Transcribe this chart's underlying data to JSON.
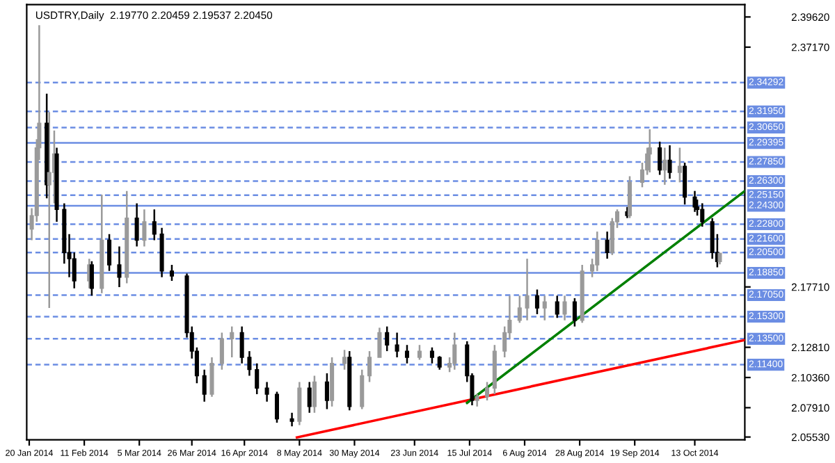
{
  "chart_data": {
    "type": "candlestick",
    "title": "USDTRY,Daily  2.19770 2.20459 2.19537 2.20450",
    "x": [
      "2014-01-21",
      "2014-01-23",
      "2014-01-24",
      "2014-01-27",
      "2014-01-28",
      "2014-01-30",
      "2014-01-31",
      "2014-02-03",
      "2014-02-05",
      "2014-02-07",
      "2014-02-13",
      "2014-02-14",
      "2014-02-18",
      "2014-02-21",
      "2014-02-25",
      "2014-02-28",
      "2014-03-04",
      "2014-03-07",
      "2014-03-11",
      "2014-03-14",
      "2014-03-18",
      "2014-03-24",
      "2014-03-26",
      "2014-03-28",
      "2014-03-31",
      "2014-04-03",
      "2014-04-07",
      "2014-04-11",
      "2014-04-15",
      "2014-04-18",
      "2014-04-21",
      "2014-04-25",
      "2014-04-29",
      "2014-05-05",
      "2014-05-08",
      "2014-05-12",
      "2014-05-14",
      "2014-05-19",
      "2014-05-21",
      "2014-05-26",
      "2014-05-28",
      "2014-06-02",
      "2014-06-05",
      "2014-06-09",
      "2014-06-12",
      "2014-06-16",
      "2014-06-20",
      "2014-06-25",
      "2014-06-30",
      "2014-07-03",
      "2014-07-07",
      "2014-07-09",
      "2014-07-14",
      "2014-07-16",
      "2014-07-18",
      "2014-07-22",
      "2014-07-25",
      "2014-07-29",
      "2014-07-31",
      "2014-08-04",
      "2014-08-07",
      "2014-08-11",
      "2014-08-14",
      "2014-08-19",
      "2014-08-22",
      "2014-08-26",
      "2014-08-29",
      "2014-09-02",
      "2014-09-04",
      "2014-09-08",
      "2014-09-10",
      "2014-09-12",
      "2014-09-16",
      "2014-09-17",
      "2014-09-22",
      "2014-09-24",
      "2014-09-25",
      "2014-09-29",
      "2014-10-01",
      "2014-10-03",
      "2014-10-07",
      "2014-10-09",
      "2014-10-13",
      "2014-10-14",
      "2014-10-16",
      "2014-10-20",
      "2014-10-22",
      "2014-10-23"
    ],
    "ohlc": [
      [
        2.224,
        2.241,
        2.215,
        2.235
      ],
      [
        2.235,
        2.297,
        2.23,
        2.29
      ],
      [
        2.29,
        2.3895,
        2.28,
        2.31
      ],
      [
        2.31,
        2.334,
        2.249,
        2.26
      ],
      [
        2.26,
        2.319,
        2.16,
        2.27
      ],
      [
        2.27,
        2.304,
        2.245,
        2.285
      ],
      [
        2.285,
        2.29,
        2.23,
        2.24
      ],
      [
        2.24,
        2.245,
        2.196,
        2.205
      ],
      [
        2.205,
        2.22,
        2.185,
        2.2
      ],
      [
        2.2,
        2.205,
        2.176,
        2.182
      ],
      [
        2.182,
        2.2,
        2.176,
        2.195
      ],
      [
        2.195,
        2.198,
        2.17,
        2.176
      ],
      [
        2.176,
        2.252,
        2.172,
        2.215
      ],
      [
        2.215,
        2.22,
        2.19,
        2.195
      ],
      [
        2.195,
        2.21,
        2.177,
        2.185
      ],
      [
        2.185,
        2.255,
        2.18,
        2.233
      ],
      [
        2.233,
        2.245,
        2.21,
        2.215
      ],
      [
        2.215,
        2.24,
        2.21,
        2.23
      ],
      [
        2.23,
        2.24,
        2.215,
        2.22
      ],
      [
        2.22,
        2.225,
        2.185,
        2.19
      ],
      [
        2.19,
        2.195,
        2.182,
        2.186
      ],
      [
        2.186,
        2.188,
        2.136,
        2.14
      ],
      [
        2.14,
        2.145,
        2.119,
        2.125
      ],
      [
        2.125,
        2.128,
        2.099,
        2.105
      ],
      [
        2.105,
        2.11,
        2.084,
        2.09
      ],
      [
        2.09,
        2.12,
        2.088,
        2.115
      ],
      [
        2.115,
        2.14,
        2.11,
        2.135
      ],
      [
        2.135,
        2.145,
        2.12,
        2.14
      ],
      [
        2.14,
        2.145,
        2.115,
        2.12
      ],
      [
        2.12,
        2.125,
        2.105,
        2.11
      ],
      [
        2.11,
        2.115,
        2.09,
        2.095
      ],
      [
        2.095,
        2.1,
        2.084,
        2.09
      ],
      [
        2.09,
        2.092,
        2.067,
        2.07
      ],
      [
        2.07,
        2.075,
        2.064,
        2.068
      ],
      [
        2.068,
        2.1,
        2.065,
        2.095
      ],
      [
        2.095,
        2.1,
        2.075,
        2.08
      ],
      [
        2.08,
        2.105,
        2.075,
        2.1
      ],
      [
        2.1,
        2.107,
        2.078,
        2.085
      ],
      [
        2.085,
        2.12,
        2.08,
        2.115
      ],
      [
        2.115,
        2.126,
        2.11,
        2.12
      ],
      [
        2.12,
        2.125,
        2.077,
        2.08
      ],
      [
        2.08,
        2.11,
        2.078,
        2.105
      ],
      [
        2.105,
        2.125,
        2.1,
        2.12
      ],
      [
        2.12,
        2.144,
        2.12,
        2.14
      ],
      [
        2.14,
        2.145,
        2.125,
        2.13
      ],
      [
        2.13,
        2.14,
        2.12,
        2.125
      ],
      [
        2.125,
        2.13,
        2.115,
        2.12
      ],
      [
        2.12,
        2.13,
        2.118,
        2.125
      ],
      [
        2.125,
        2.128,
        2.115,
        2.12
      ],
      [
        2.12,
        2.121,
        2.11,
        2.112
      ],
      [
        2.112,
        2.12,
        2.108,
        2.115
      ],
      [
        2.115,
        2.14,
        2.11,
        2.13
      ],
      [
        2.13,
        2.133,
        2.1,
        2.105
      ],
      [
        2.105,
        2.107,
        2.081,
        2.085
      ],
      [
        2.085,
        2.09,
        2.08,
        2.088
      ],
      [
        2.088,
        2.1,
        2.085,
        2.095
      ],
      [
        2.095,
        2.13,
        2.09,
        2.125
      ],
      [
        2.125,
        2.145,
        2.12,
        2.14
      ],
      [
        2.14,
        2.17,
        2.135,
        2.15
      ],
      [
        2.15,
        2.17,
        2.148,
        2.16
      ],
      [
        2.16,
        2.2,
        2.15,
        2.17
      ],
      [
        2.17,
        2.175,
        2.155,
        2.16
      ],
      [
        2.16,
        2.17,
        2.15,
        2.165
      ],
      [
        2.165,
        2.17,
        2.152,
        2.155
      ],
      [
        2.155,
        2.17,
        2.15,
        2.165
      ],
      [
        2.165,
        2.168,
        2.145,
        2.15
      ],
      [
        2.15,
        2.195,
        2.148,
        2.19
      ],
      [
        2.19,
        2.2,
        2.185,
        2.195
      ],
      [
        2.195,
        2.222,
        2.19,
        2.215
      ],
      [
        2.215,
        2.222,
        2.2,
        2.205
      ],
      [
        2.205,
        2.233,
        2.203,
        2.23
      ],
      [
        2.23,
        2.24,
        2.225,
        2.238
      ],
      [
        2.238,
        2.242,
        2.233,
        2.235
      ],
      [
        2.235,
        2.267,
        2.233,
        2.262
      ],
      [
        2.262,
        2.278,
        2.258,
        2.272
      ],
      [
        2.272,
        2.29,
        2.268,
        2.285
      ],
      [
        2.285,
        2.305,
        2.27,
        2.29
      ],
      [
        2.29,
        2.295,
        2.268,
        2.272
      ],
      [
        2.272,
        2.29,
        2.26,
        2.28
      ],
      [
        2.28,
        2.292,
        2.265,
        2.27
      ],
      [
        2.27,
        2.29,
        2.262,
        2.275
      ],
      [
        2.275,
        2.278,
        2.244,
        2.25
      ],
      [
        2.25,
        2.255,
        2.238,
        2.242
      ],
      [
        2.242,
        2.248,
        2.235,
        2.24
      ],
      [
        2.24,
        2.245,
        2.226,
        2.23
      ],
      [
        2.23,
        2.233,
        2.2,
        2.205
      ],
      [
        2.205,
        2.22,
        2.193,
        2.1977
      ],
      [
        2.1977,
        2.20459,
        2.19537,
        2.2045
      ]
    ],
    "series": [
      {
        "type": "line",
        "color": "#ff0000",
        "x": [
          "2014-05-07",
          "2014-11-02"
        ],
        "values": [
          2.055,
          2.134
        ]
      },
      {
        "type": "line",
        "color": "#008000",
        "x": [
          "2014-07-14",
          "2014-11-02"
        ],
        "values": [
          2.083,
          2.255
        ]
      }
    ],
    "xlim": [
      "2014-01-19",
      "2014-11-02"
    ],
    "xticks": [
      {
        "value": "2014-01-20",
        "label": "20 Jan 2014"
      },
      {
        "value": "2014-02-11",
        "label": "11 Feb 2014"
      },
      {
        "value": "2014-03-05",
        "label": "5 Mar 2014"
      },
      {
        "value": "2014-03-26",
        "label": "26 Mar 2014"
      },
      {
        "value": "2014-04-16",
        "label": "16 Apr 2014"
      },
      {
        "value": "2014-05-08",
        "label": "8 May 2014"
      },
      {
        "value": "2014-05-30",
        "label": "30 May 2014"
      },
      {
        "value": "2014-06-23",
        "label": "23 Jun 2014"
      },
      {
        "value": "2014-07-15",
        "label": "15 Jul 2014"
      },
      {
        "value": "2014-08-06",
        "label": "6 Aug 2014"
      },
      {
        "value": "2014-08-28",
        "label": "28 Aug 2014"
      },
      {
        "value": "2014-09-19",
        "label": "19 Sep 2014"
      },
      {
        "value": "2014-10-13",
        "label": "13 Oct 2014"
      }
    ],
    "ylim": [
      2.053,
      2.4062
    ],
    "yticks": [
      {
        "value": 2.3962,
        "label": "2.39620"
      },
      {
        "value": 2.3717,
        "label": "2.37170"
      },
      {
        "value": 2.1771,
        "label": "2.17710"
      },
      {
        "value": 2.1281,
        "label": "2.12810"
      },
      {
        "value": 2.1036,
        "label": "2.10360"
      },
      {
        "value": 2.0791,
        "label": "2.07910"
      },
      {
        "value": 2.0553,
        "label": "2.05530"
      }
    ],
    "ref_lines": [
      {
        "axis": "y",
        "value": 2.34292,
        "label": "2.34292",
        "color": "#6b8de3",
        "line_style": "dashed"
      },
      {
        "axis": "y",
        "value": 2.3195,
        "label": "2.31950",
        "color": "#6b8de3",
        "line_style": "dashed"
      },
      {
        "axis": "y",
        "value": 2.3065,
        "label": "2.30650",
        "color": "#6b8de3",
        "line_style": "dashed"
      },
      {
        "axis": "y",
        "value": 2.29395,
        "label": "2.29395",
        "color": "#6b8de3",
        "line_style": "solid"
      },
      {
        "axis": "y",
        "value": 2.2785,
        "label": "2.27850",
        "color": "#6b8de3",
        "line_style": "dashed"
      },
      {
        "axis": "y",
        "value": 2.263,
        "label": "2.26300",
        "color": "#6b8de3",
        "line_style": "dashed"
      },
      {
        "axis": "y",
        "value": 2.2515,
        "label": "2.25150",
        "color": "#6b8de3",
        "line_style": "dashed"
      },
      {
        "axis": "y",
        "value": 2.243,
        "label": "2.24300",
        "color": "#6b8de3",
        "line_style": "solid"
      },
      {
        "axis": "y",
        "value": 2.228,
        "label": "2.22800",
        "color": "#6b8de3",
        "line_style": "dashed"
      },
      {
        "axis": "y",
        "value": 2.216,
        "label": "2.21600",
        "color": "#6b8de3",
        "line_style": "dashed"
      },
      {
        "axis": "y",
        "value": 2.205,
        "label": "2.20500",
        "color": "#6b8de3",
        "line_style": "dashed"
      },
      {
        "axis": "y",
        "value": 2.1885,
        "label": "2.18850",
        "color": "#6b8de3",
        "line_style": "solid"
      },
      {
        "axis": "y",
        "value": 2.1705,
        "label": "2.17050",
        "color": "#6b8de3",
        "line_style": "dashed"
      },
      {
        "axis": "y",
        "value": 2.153,
        "label": "2.15300",
        "color": "#6b8de3",
        "line_style": "dashed"
      },
      {
        "axis": "y",
        "value": 2.135,
        "label": "2.13500",
        "color": "#6b8de3",
        "line_style": "dashed"
      },
      {
        "axis": "y",
        "value": 2.114,
        "label": "2.11400",
        "color": "#6b8de3",
        "line_style": "dashed"
      }
    ],
    "grid": false
  }
}
